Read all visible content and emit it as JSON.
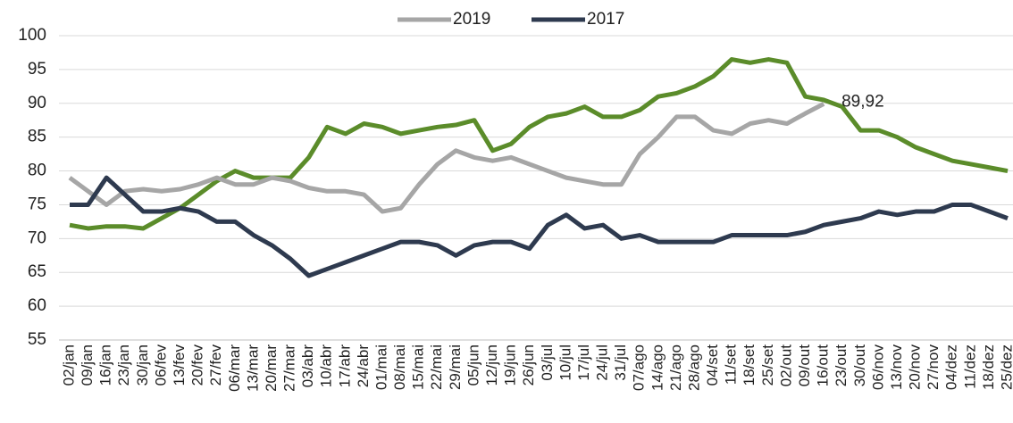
{
  "chart_data": {
    "type": "line",
    "categories": [
      "02/jan",
      "09/jan",
      "16/jan",
      "23/jan",
      "30/jan",
      "06/fev",
      "13/fev",
      "20/fev",
      "27/fev",
      "06/mar",
      "13/mar",
      "20/mar",
      "27/mar",
      "03/abr",
      "10/abr",
      "17/abr",
      "24/abr",
      "01/mai",
      "08/mai",
      "15/mai",
      "22/mai",
      "29/mai",
      "05/jun",
      "12/jun",
      "19/jun",
      "26/jun",
      "03/jul",
      "10/jul",
      "17/jul",
      "24/jul",
      "31/jul",
      "07/ago",
      "14/ago",
      "21/ago",
      "28/ago",
      "04/set",
      "11/set",
      "18/set",
      "25/set",
      "02/out",
      "09/out",
      "16/out",
      "23/out",
      "30/out",
      "06/nov",
      "13/nov",
      "20/nov",
      "27/nov",
      "04/dez",
      "11/dez",
      "18/dez",
      "25/dez"
    ],
    "series": [
      {
        "color": "#5b8c2a",
        "values": [
          72,
          71.5,
          71.8,
          71.8,
          71.5,
          73,
          74.5,
          76.5,
          78.5,
          80,
          79,
          79,
          79,
          82,
          86.5,
          85.5,
          87,
          86.5,
          85.5,
          86,
          86.5,
          86.8,
          87.5,
          83,
          84,
          86.5,
          88,
          88.5,
          89.5,
          88,
          88,
          89,
          91,
          91.5,
          92.5,
          94,
          96.5,
          96,
          96.5,
          96,
          91,
          90.5,
          89.5,
          86,
          86,
          85,
          83.5,
          82.5,
          81.5,
          81,
          80.5,
          80
        ]
      },
      {
        "name": "2019",
        "color": "#a6a6a6",
        "values": [
          79,
          77,
          75,
          77,
          77.3,
          77,
          77.3,
          78,
          79,
          78,
          78,
          79,
          78.5,
          77.5,
          77,
          77,
          76.5,
          74,
          74.5,
          78,
          81,
          83,
          82,
          81.5,
          82,
          81,
          80,
          79,
          78.5,
          78,
          78,
          82.5,
          85,
          88,
          88,
          86,
          85.5,
          87,
          87.5,
          87,
          88.5,
          89.92,
          null,
          null,
          null,
          null,
          null,
          null,
          null,
          null,
          null,
          null
        ]
      },
      {
        "name": "2017",
        "color": "#2e3a4f",
        "values": [
          75,
          75,
          79,
          76.5,
          74,
          74,
          74.5,
          74,
          72.5,
          72.5,
          70.5,
          69,
          67,
          64.5,
          65.5,
          66.5,
          67.5,
          68.5,
          69.5,
          69.5,
          69,
          67.5,
          69,
          69.5,
          69.5,
          68.5,
          72,
          73.5,
          71.5,
          72,
          70,
          70.5,
          69.5,
          69.5,
          69.5,
          69.5,
          70.5,
          70.5,
          70.5,
          70.5,
          71,
          72,
          72.5,
          73,
          74,
          73.5,
          74,
          74,
          75,
          75,
          74,
          73
        ]
      }
    ],
    "annotation": "89,92",
    "ylim": [
      55,
      100
    ],
    "yticks": [
      55,
      60,
      65,
      70,
      75,
      80,
      85,
      90,
      95,
      100
    ],
    "grid": true
  }
}
